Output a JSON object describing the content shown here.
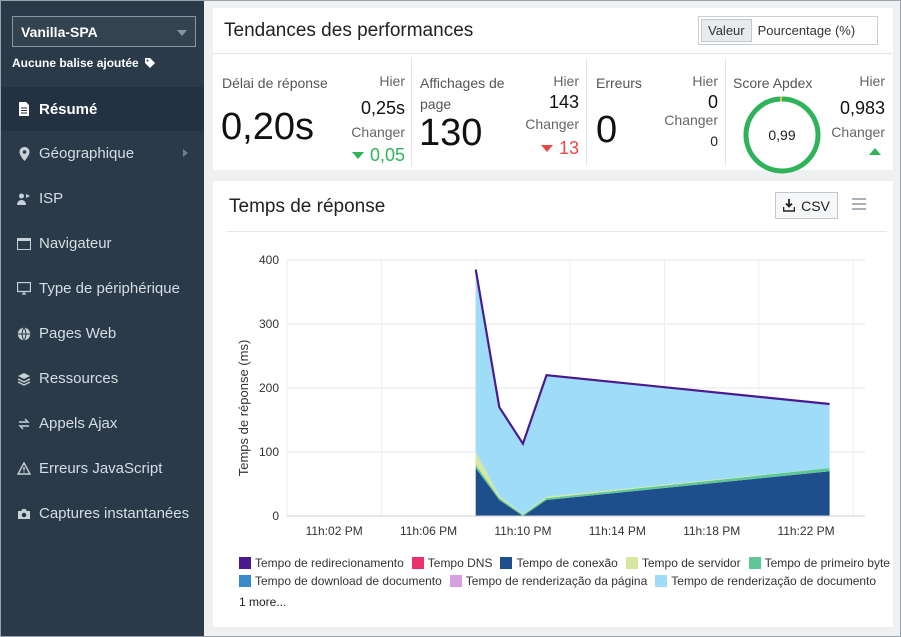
{
  "sidebar": {
    "app_name": "Vanilla-SPA",
    "tag_text": "Aucune balise ajoutée",
    "items": [
      {
        "label": "Résumé",
        "icon": "document-icon"
      },
      {
        "label": "Géographique",
        "icon": "location-pin-icon"
      },
      {
        "label": "ISP",
        "icon": "isp-user-icon"
      },
      {
        "label": "Navigateur",
        "icon": "browser-window-icon"
      },
      {
        "label": "Type de périphérique",
        "icon": "monitor-icon"
      },
      {
        "label": "Pages Web",
        "icon": "globe-icon"
      },
      {
        "label": "Ressources",
        "icon": "layers-icon"
      },
      {
        "label": "Appels Ajax",
        "icon": "swap-arrows-icon"
      },
      {
        "label": "Erreurs JavaScript",
        "icon": "warning-icon"
      },
      {
        "label": "Captures instantanées",
        "icon": "camera-icon"
      }
    ]
  },
  "perf": {
    "title": "Tendances des performances",
    "toggle": {
      "value": "Valeur",
      "percent": "Pourcentage (%)"
    },
    "metrics": {
      "response": {
        "label": "Délai de réponse",
        "value": "0,20s",
        "hier_label": "Hier",
        "hier_value": "0,25s",
        "change_label": "Changer",
        "change_value": "0,05"
      },
      "pageviews": {
        "label": "Affichages de page",
        "value": "130",
        "hier_label": "Hier",
        "hier_value": "143",
        "change_label": "Changer",
        "change_value": "13"
      },
      "errors": {
        "label": "Erreurs",
        "value": "0",
        "hier_label": "Hier",
        "hier_value": "0",
        "change_label": "Changer",
        "change_value": "0"
      },
      "apdex": {
        "label": "Score Apdex",
        "value": "0,99",
        "value_num": 0.99,
        "hier_label": "Hier",
        "hier_value": "0,983",
        "change_label": "Changer"
      }
    }
  },
  "chart_panel": {
    "title": "Temps de réponse",
    "csv_label": "CSV",
    "more_label": "1 more..."
  },
  "colors": {
    "redirection": "#4b1a8f",
    "dns": "#e8336d",
    "conexao": "#1f4e8c",
    "servidor": "#d6e8a0",
    "primeiro_byte": "#5ec796",
    "download": "#3a89c9",
    "render_pagina": "#d7a0e0",
    "render_documento": "#9fdcf8"
  },
  "chart_data": {
    "type": "area",
    "title": "Temps de réponse",
    "xlabel": "",
    "ylabel": "Temps de réponse (ms)",
    "ylim": [
      0,
      400
    ],
    "yticks": [
      0,
      100,
      200,
      300,
      400
    ],
    "xlim_minutes": [
      0,
      24.5
    ],
    "xticks": [
      {
        "label": "11h:02 PM",
        "t": 2
      },
      {
        "label": "11h:06 PM",
        "t": 6
      },
      {
        "label": "11h:10 PM",
        "t": 10
      },
      {
        "label": "11h:14 PM",
        "t": 14
      },
      {
        "label": "11h:18 PM",
        "t": 18
      },
      {
        "label": "11h:22 PM",
        "t": 22
      }
    ],
    "x_minutes": [
      8,
      9,
      10,
      11,
      23
    ],
    "series": [
      {
        "name": "Tempo de conexão",
        "values": [
          75,
          25,
          0,
          25,
          70
        ]
      },
      {
        "name": "Tempo de primeiro byte",
        "values": [
          5,
          3,
          2,
          3,
          5
        ]
      },
      {
        "name": "Tempo de servidor",
        "values": [
          20,
          3,
          1,
          2,
          0
        ]
      },
      {
        "name": "Tempo de renderização de documento",
        "values": [
          285,
          139,
          110,
          190,
          100
        ]
      }
    ],
    "outline_total": [
      385,
      170,
      113,
      220,
      175
    ],
    "legend": [
      {
        "name": "Tempo de redirecionamento",
        "color_key": "redirection"
      },
      {
        "name": "Tempo DNS",
        "color_key": "dns"
      },
      {
        "name": "Tempo de conexão",
        "color_key": "conexao"
      },
      {
        "name": "Tempo de servidor",
        "color_key": "servidor"
      },
      {
        "name": "Tempo de primeiro byte",
        "color_key": "primeiro_byte"
      },
      {
        "name": "Tempo de download de documento",
        "color_key": "download"
      },
      {
        "name": "Tempo de renderização da página",
        "color_key": "render_pagina"
      },
      {
        "name": "Tempo de renderização de documento",
        "color_key": "render_documento"
      }
    ]
  }
}
